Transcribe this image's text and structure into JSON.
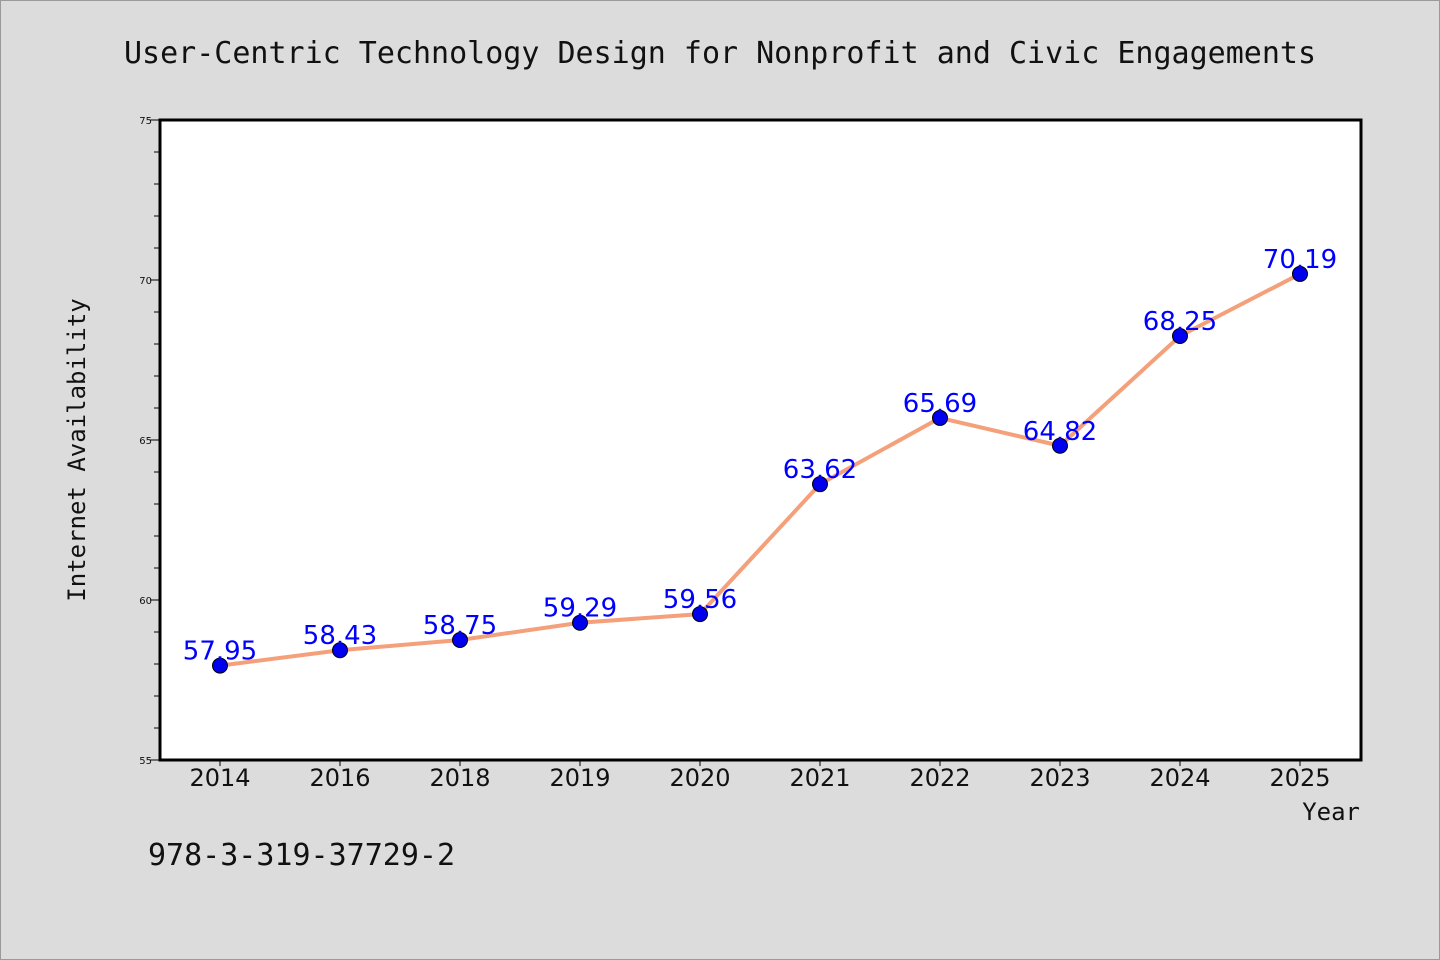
{
  "chart_data": {
    "type": "line",
    "title": "User-Centric Technology Design for Nonprofit and Civic Engagements",
    "xlabel": "Year",
    "ylabel": "Internet Availability",
    "categories": [
      "2014",
      "2016",
      "2018",
      "2019",
      "2020",
      "2021",
      "2022",
      "2023",
      "2024",
      "2025"
    ],
    "series": [
      {
        "values": [
          57.95,
          58.43,
          58.75,
          59.29,
          59.56,
          63.62,
          65.69,
          64.82,
          68.25,
          70.19
        ],
        "labels": [
          "57.95",
          "58.43",
          "58.75",
          "59.29",
          "59.56",
          "63.62",
          "65.69",
          "64.82",
          "68.25",
          "70.19"
        ],
        "line_color": "#f4a07a",
        "marker_color": "#0000ee"
      }
    ],
    "ylim": [
      55,
      75
    ],
    "yticks": [
      "55",
      "60",
      "65",
      "70",
      "75"
    ],
    "grid": false,
    "legend": "none"
  },
  "footer": {
    "isbn": "978-3-319-37729-2"
  }
}
